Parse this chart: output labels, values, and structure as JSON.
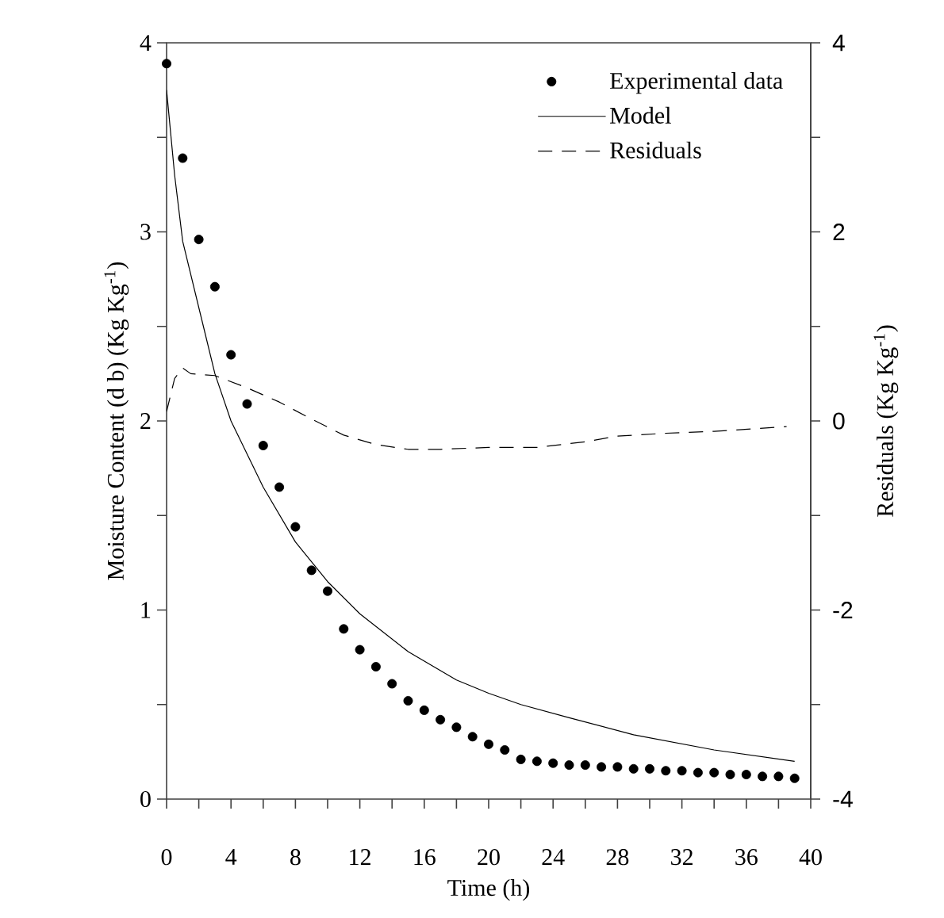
{
  "chart_data": {
    "type": "line",
    "xlabel": "Time (h)",
    "ylabel": "Moisture Content (d b) (Kg Kg$^{-1}$)",
    "y2label": "Residuals (Kg Kg$^{-1}$)",
    "xlim": [
      0,
      40
    ],
    "ylim": [
      0,
      4
    ],
    "y2lim": [
      -4,
      4
    ],
    "xticks": [
      0,
      {
        "value": 2,
        "label": null
      },
      4,
      {
        "value": 6,
        "label": null
      },
      8,
      {
        "value": 10,
        "label": null
      },
      12,
      {
        "value": 14,
        "label": null
      },
      16,
      {
        "value": 18,
        "label": null
      },
      20,
      {
        "value": 22,
        "label": null
      },
      24,
      {
        "value": 26,
        "label": null
      },
      28,
      {
        "value": 30,
        "label": null
      },
      32,
      {
        "value": 34,
        "label": null
      },
      36,
      {
        "value": 38,
        "label": null
      },
      40
    ],
    "yticks": [
      0,
      {
        "value": 0.5,
        "label": null
      },
      1,
      {
        "value": 1.5,
        "label": null
      },
      2,
      {
        "value": 2.5,
        "label": null
      },
      3,
      {
        "value": 3.5,
        "label": null
      },
      4
    ],
    "y2ticks": [
      -4,
      {
        "value": -3,
        "label": null
      },
      -2,
      {
        "value": -1,
        "label": null
      },
      0,
      {
        "value": 1,
        "label": null
      },
      2,
      {
        "value": 3,
        "label": null
      },
      4
    ],
    "legend": "top right",
    "series": [
      {
        "name": "Experimental data",
        "type": "scatter",
        "marker": "circle",
        "color": "#000000",
        "x": [
          0,
          1,
          2,
          3,
          4,
          5,
          6,
          7,
          8,
          9,
          10,
          11,
          12,
          13,
          14,
          15,
          16,
          17,
          18,
          19,
          20,
          21,
          22,
          23,
          24,
          25,
          26,
          27,
          28,
          29,
          30,
          31,
          32,
          33,
          34,
          35,
          36,
          37,
          38,
          39
        ],
        "values": [
          3.89,
          3.39,
          2.96,
          2.71,
          2.35,
          2.09,
          1.87,
          1.65,
          1.44,
          1.21,
          1.1,
          0.9,
          0.79,
          0.7,
          0.61,
          0.52,
          0.47,
          0.42,
          0.38,
          0.33,
          0.29,
          0.26,
          0.21,
          0.2,
          0.19,
          0.18,
          0.18,
          0.17,
          0.17,
          0.16,
          0.16,
          0.15,
          0.15,
          0.14,
          0.14,
          0.13,
          0.13,
          0.12,
          0.12,
          0.11
        ]
      },
      {
        "name": "Model",
        "line_style": "solid",
        "color": "#000000",
        "x": [
          0,
          0.5,
          1,
          2,
          3,
          4,
          6,
          8,
          10,
          12,
          15,
          18,
          20,
          22,
          25,
          29,
          34,
          39
        ],
        "values": [
          3.75,
          3.3,
          2.95,
          2.6,
          2.25,
          2.0,
          1.65,
          1.36,
          1.15,
          0.98,
          0.78,
          0.63,
          0.56,
          0.5,
          0.43,
          0.34,
          0.26,
          0.2
        ]
      },
      {
        "name": "Residuals",
        "line_style": "dashed",
        "axis": "y2",
        "color": "#000000",
        "x": [
          0,
          0.5,
          1,
          1.5,
          3,
          5,
          7,
          9,
          11,
          13,
          15,
          17,
          20,
          23,
          26,
          28,
          31,
          34,
          38.5
        ],
        "values": [
          0.1,
          0.45,
          0.56,
          0.5,
          0.48,
          0.35,
          0.2,
          0.02,
          -0.15,
          -0.25,
          -0.3,
          -0.3,
          -0.28,
          -0.28,
          -0.22,
          -0.16,
          -0.13,
          -0.11,
          -0.06
        ]
      }
    ]
  }
}
